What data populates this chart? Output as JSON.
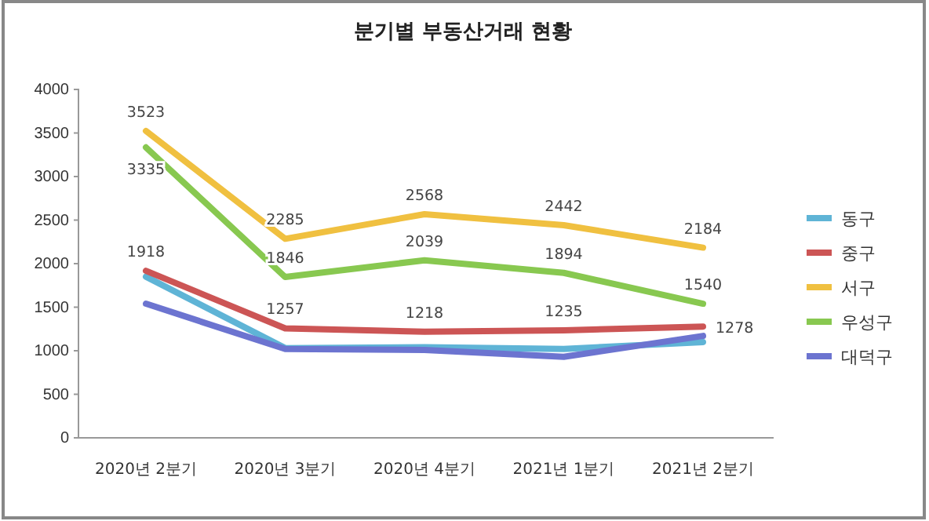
{
  "chart_data": {
    "type": "line",
    "title": "분기별 부동산거래 현황",
    "categories": [
      "2020년 2분기",
      "2020년 3분기",
      "2020년 4분기",
      "2021년 1분기",
      "2021년 2분기"
    ],
    "series": [
      {
        "name": "동구",
        "color": "#5fb4d6",
        "values": [
          1850,
          1030,
          1040,
          1020,
          1100
        ],
        "value_labels": [
          null,
          null,
          null,
          null,
          null
        ]
      },
      {
        "name": "중구",
        "color": "#cc5555",
        "values": [
          1918,
          1257,
          1218,
          1235,
          1278
        ],
        "value_labels": [
          "1918",
          "1257",
          "1218",
          "1235",
          "1278"
        ]
      },
      {
        "name": "서구",
        "color": "#f0c040",
        "values": [
          3523,
          2285,
          2568,
          2442,
          2184
        ],
        "value_labels": [
          "3523",
          "2285",
          "2568",
          "2442",
          "2184"
        ]
      },
      {
        "name": "우성구",
        "color": "#88c850",
        "values": [
          3335,
          1846,
          2039,
          1894,
          1540
        ],
        "value_labels": [
          "3335",
          "1846",
          "2039",
          "1894",
          "1540"
        ]
      },
      {
        "name": "대덕구",
        "color": "#6c74d0",
        "values": [
          1540,
          1020,
          1010,
          930,
          1170
        ],
        "value_labels": [
          null,
          null,
          null,
          null,
          null
        ]
      }
    ],
    "ylim": [
      0,
      4000
    ],
    "yticks": [
      0,
      500,
      1000,
      1500,
      2000,
      2500,
      3000,
      3500,
      4000
    ],
    "grid": false,
    "legend": "right",
    "marker": "none",
    "line_style": "solid"
  }
}
